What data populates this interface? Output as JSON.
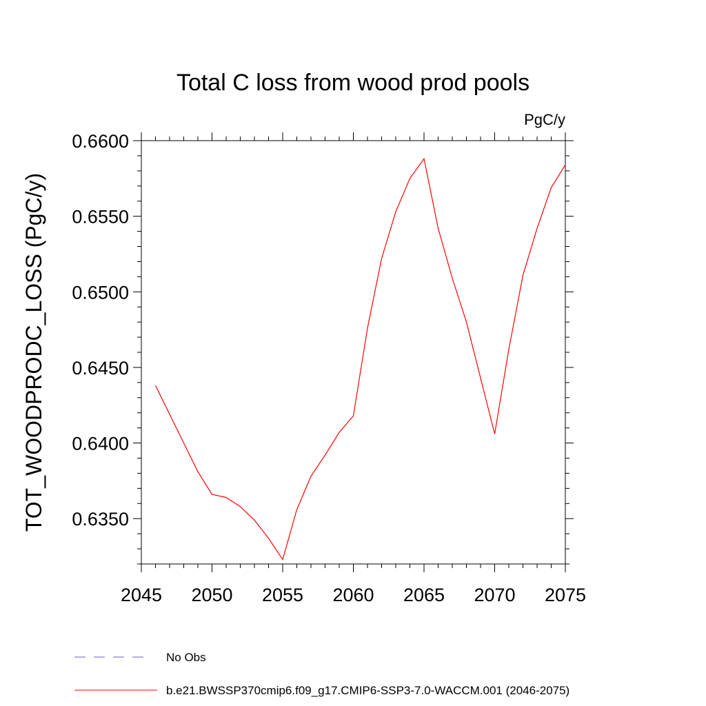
{
  "chart_data": {
    "type": "line",
    "title": "Total C loss from wood prod pools",
    "units_label": "PgC/y",
    "xlabel": "",
    "ylabel": "TOT_WOODPRODC_LOSS  (PgC/y)",
    "xlim": [
      2045,
      2075
    ],
    "ylim": [
      0.632,
      0.66
    ],
    "x_ticks": [
      "2045",
      "2050",
      "2055",
      "2060",
      "2065",
      "2070",
      "2075"
    ],
    "y_ticks": [
      "0.6350",
      "0.6400",
      "0.6450",
      "0.6500",
      "0.6550",
      "0.6600"
    ],
    "grid": false,
    "legend_position": "bottom",
    "series": [
      {
        "name": "b.e21.BWSSP370cmip6.f09_g17.CMIP6-SSP3-7.0-WACCM.001 (2046-2075)",
        "color": "#ff0000",
        "x": [
          2046,
          2047,
          2048,
          2049,
          2050,
          2051,
          2052,
          2053,
          2054,
          2055,
          2056,
          2057,
          2058,
          2059,
          2060,
          2061,
          2062,
          2063,
          2064,
          2065,
          2066,
          2067,
          2068,
          2069,
          2070,
          2071,
          2072,
          2073,
          2074,
          2075
        ],
        "y": [
          0.6438,
          0.6419,
          0.64,
          0.6381,
          0.6366,
          0.6364,
          0.6358,
          0.6349,
          0.6337,
          0.6323,
          0.6356,
          0.6378,
          0.6392,
          0.6407,
          0.6418,
          0.6476,
          0.6522,
          0.6553,
          0.6575,
          0.6588,
          0.6542,
          0.6509,
          0.648,
          0.6443,
          0.6406,
          0.6462,
          0.6511,
          0.6542,
          0.6569,
          0.6584
        ]
      }
    ],
    "legend": [
      {
        "label": "No Obs",
        "color": "#6a5acd",
        "style": "dashed"
      },
      {
        "label": "b.e21.BWSSP370cmip6.f09_g17.CMIP6-SSP3-7.0-WACCM.001 (2046-2075)",
        "color": "#ff0000",
        "style": "solid"
      }
    ]
  }
}
